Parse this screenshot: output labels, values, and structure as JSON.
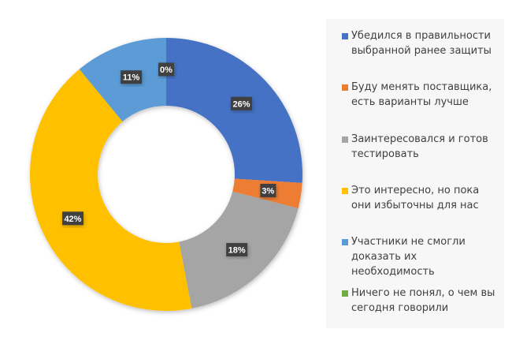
{
  "chart_data": {
    "type": "pie",
    "subtype": "donut",
    "title": "",
    "categories": [
      "Убедился в правильности выбранной ранее защиты",
      "Буду менять поставщика, есть варианты лучше",
      "Заинтересовался и готов тестировать",
      "Это интересно, но пока они избыточны для нас",
      "Участники не смогли доказать их необходимость",
      "Ничего не понял, о чем вы сегодня говорили"
    ],
    "values": [
      26,
      3,
      18,
      42,
      11,
      0
    ],
    "data_labels": [
      "26%",
      "3%",
      "18%",
      "42%",
      "11%",
      "0%"
    ],
    "colors": [
      "#4472c4",
      "#ed7d31",
      "#a5a5a5",
      "#ffc000",
      "#5b9bd5",
      "#70ad47"
    ],
    "legend_position": "right"
  }
}
